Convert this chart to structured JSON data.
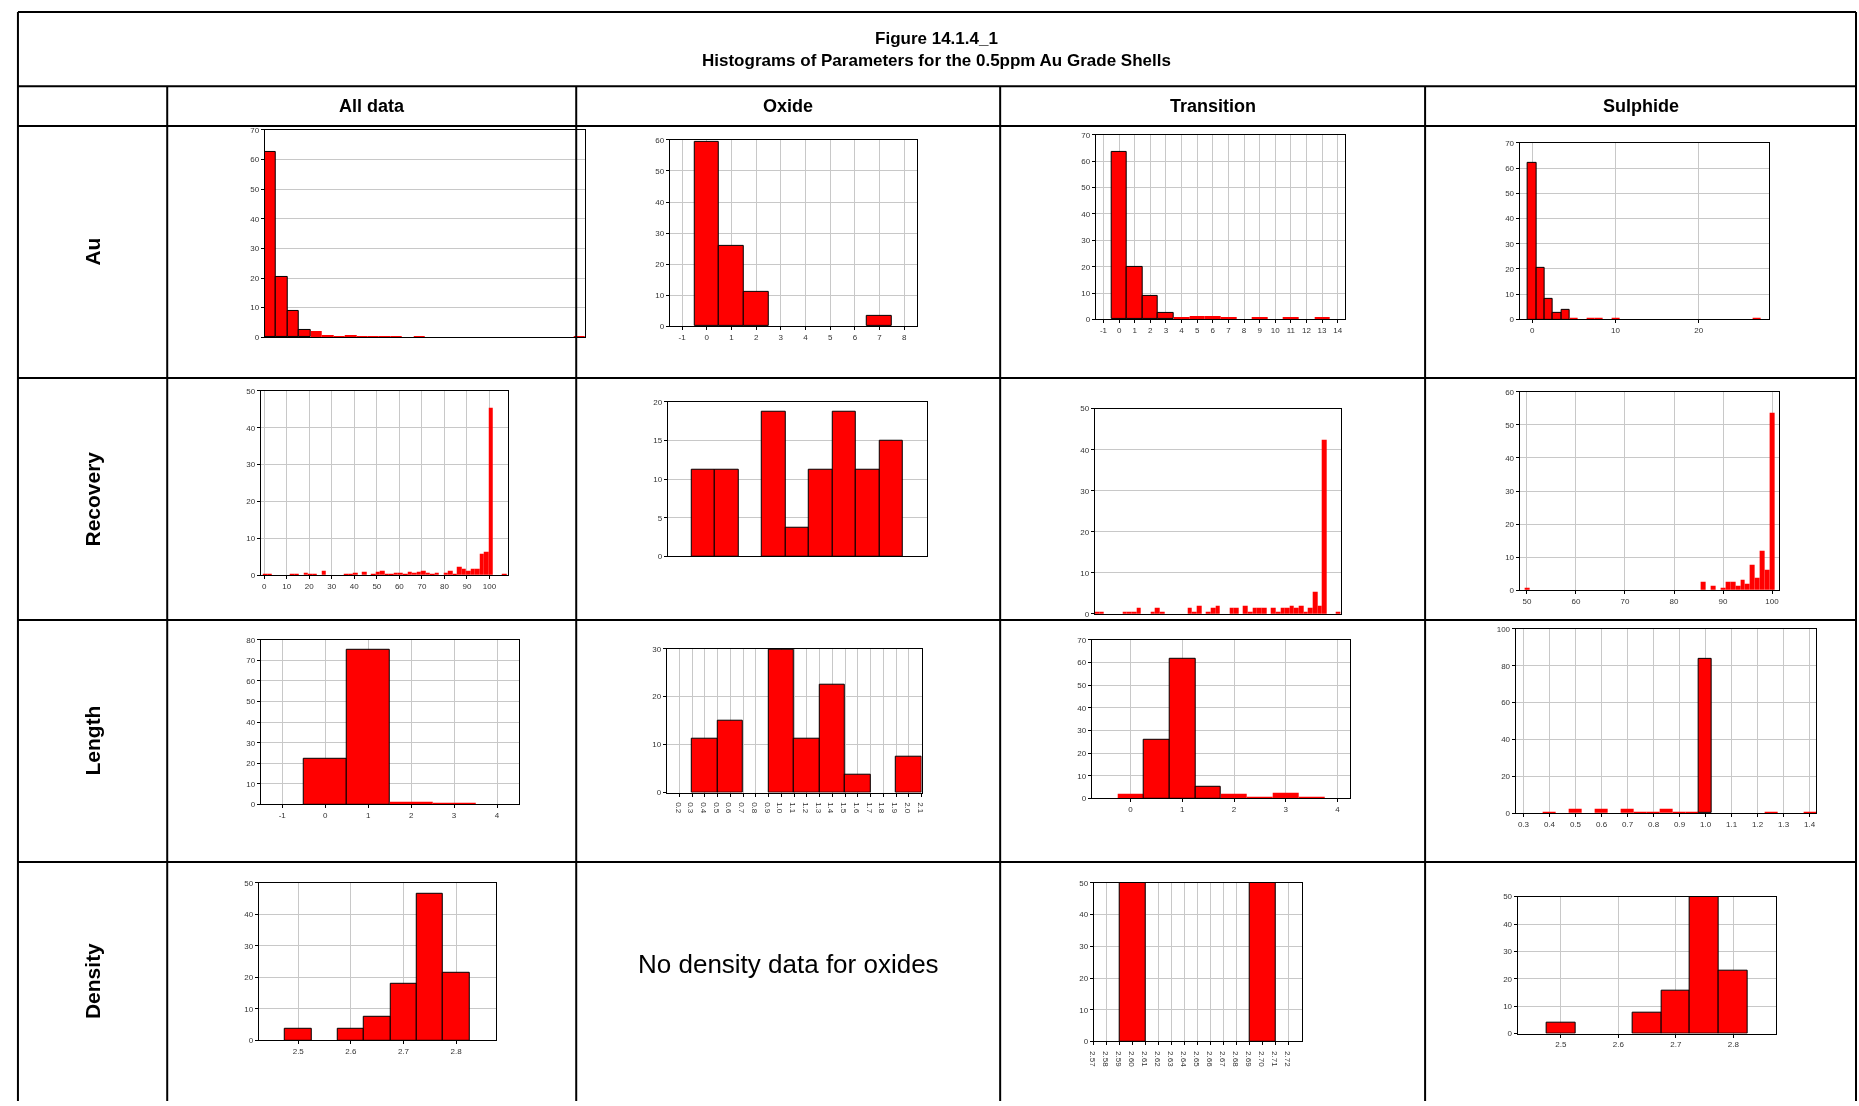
{
  "chart_data": [
    {
      "type": "other",
      "title": "Figure 14.1.4_1\nHistograms of Parameters for the 0.5ppm Au Grade Shells",
      "annotations": [
        "All data",
        "Oxide",
        "Transition",
        "Sulphide",
        "Au",
        "Recovery",
        "Length",
        "Density",
        "No density data for oxides"
      ]
    },
    {
      "type": "bar",
      "color": "#ff0000",
      "grid": true,
      "tick_labels": "y",
      "categories": [
        null,
        null,
        null,
        null,
        null,
        null,
        null,
        null,
        null,
        null,
        null,
        null,
        null,
        null,
        null,
        null,
        null,
        null,
        null,
        null,
        null,
        null,
        null,
        null,
        null,
        null,
        null,
        null
      ],
      "values": [
        62.5,
        20.5,
        8.8,
        2.3,
        2,
        0.8,
        0.5,
        0.8,
        0.2,
        0.2,
        0.2,
        0.2,
        0,
        0.3,
        0,
        0,
        0,
        0,
        0,
        0,
        0,
        0,
        0,
        0,
        0,
        0,
        0,
        0.3
      ],
      "ylim": [
        0,
        70
      ],
      "yticks": [
        0,
        10,
        20,
        30,
        40,
        50,
        60,
        70
      ]
    },
    {
      "type": "histogram",
      "color": "#ff0000",
      "grid": true,
      "bins": [
        -0.5,
        0.5,
        1.5,
        2.5,
        3.5,
        4.5,
        5.5,
        6.5,
        7.5
      ],
      "values": [
        59.5,
        26,
        11,
        0,
        0,
        0,
        0,
        3.5
      ],
      "xlim": [
        -1.5,
        8.5
      ],
      "xticks": [
        -1,
        0,
        1,
        2,
        3,
        4,
        5,
        6,
        7,
        8
      ],
      "ylim": [
        0,
        60
      ],
      "yticks": [
        0,
        10,
        20,
        30,
        40,
        50,
        60
      ]
    },
    {
      "type": "histogram",
      "color": "#ff0000",
      "grid": true,
      "bins": [
        -0.5,
        0.5,
        1.5,
        2.5,
        3.5,
        4.5,
        5.5,
        6.5,
        7.5,
        8.5,
        9.5,
        10.5,
        11.5,
        12.5,
        13.5
      ],
      "values": [
        63.5,
        20,
        8.8,
        2.5,
        0.8,
        1.3,
        1.3,
        0.8,
        0,
        0.8,
        0,
        0.8,
        0,
        0.8
      ],
      "xlim": [
        -1.5,
        14.5
      ],
      "xticks": [
        -1,
        0,
        1,
        2,
        3,
        4,
        5,
        6,
        7,
        8,
        9,
        10,
        11,
        12,
        13,
        14
      ],
      "ylim": [
        0,
        70
      ],
      "yticks": [
        0,
        10,
        20,
        30,
        40,
        50,
        60,
        70
      ]
    },
    {
      "type": "histogram",
      "color": "#ff0000",
      "grid": true,
      "bins": [
        -0.5,
        0.5,
        1.5,
        2.5,
        3.5,
        4.5,
        5.5,
        6.5,
        7.5,
        8.5,
        9.5,
        10.5,
        11.5,
        12.5,
        13.5,
        14.5,
        15.5,
        16.5,
        17.5,
        18.5,
        19.5,
        20.5,
        21.5,
        22.5,
        23.5,
        24.5,
        25.5,
        26.5,
        27.5
      ],
      "values": [
        62,
        20.5,
        8.2,
        2.5,
        3.8,
        0.5,
        0,
        0.5,
        0.5,
        0,
        0.5,
        0,
        0,
        0,
        0,
        0,
        0,
        0,
        0,
        0,
        0,
        0,
        0,
        0,
        0,
        0,
        0,
        0.5
      ],
      "xlim": [
        -1.5,
        28.5
      ],
      "xticks": [
        0,
        10,
        20
      ],
      "ylim": [
        0,
        70
      ],
      "yticks": [
        0,
        10,
        20,
        30,
        40,
        50,
        60,
        70
      ]
    },
    {
      "type": "histogram",
      "color": "#ff0000",
      "grid": true,
      "bins": [
        -0.5,
        1.5,
        3.5,
        5.5,
        7.5,
        9.5,
        11.5,
        13.5,
        15.5,
        17.5,
        19.5,
        21.5,
        23.5,
        25.5,
        27.5,
        29.5,
        31.5,
        33.5,
        35.5,
        37.5,
        39.5,
        41.5,
        43.5,
        45.5,
        47.5,
        49.5,
        51.5,
        53.5,
        55.5,
        57.5,
        59.5,
        61.5,
        63.5,
        65.5,
        67.5,
        69.5,
        71.5,
        73.5,
        75.5,
        77.5,
        79.5,
        81.5,
        83.5,
        85.5,
        87.5,
        89.5,
        91.5,
        93.5,
        95.5,
        97.5,
        99.5,
        101.5,
        103.5,
        105.5,
        107.5
      ],
      "values": [
        0.5,
        0.5,
        0,
        0,
        0,
        0,
        0.5,
        0.5,
        0,
        0.7,
        0.5,
        0.5,
        0,
        1.2,
        0,
        0,
        0,
        0,
        0.5,
        0.5,
        0.8,
        0,
        1,
        0,
        0.5,
        1,
        1.2,
        0.5,
        0.5,
        0.8,
        0.8,
        0.5,
        1,
        0.7,
        1,
        1.2,
        0.8,
        0.5,
        0.7,
        0,
        0.7,
        1.2,
        0.5,
        2.2,
        1.7,
        1.3,
        1.8,
        1.8,
        5.8,
        6.3,
        45.5,
        0,
        0,
        0.5
      ],
      "xlim": [
        -1.5,
        108
      ],
      "xticks": [
        0,
        10,
        20,
        30,
        40,
        50,
        60,
        70,
        80,
        90,
        100
      ],
      "ylim": [
        0,
        50
      ],
      "yticks": [
        0,
        10,
        20,
        30,
        40,
        50
      ]
    },
    {
      "type": "bar",
      "color": "#ff0000",
      "grid": true,
      "tick_labels": "y",
      "categories": [
        null,
        null,
        null,
        null,
        null,
        null,
        null,
        null,
        null,
        null,
        null
      ],
      "values": [
        0,
        11.2,
        11.2,
        0,
        18.7,
        3.7,
        11.2,
        18.7,
        11.2,
        14.9,
        0
      ],
      "ylim": [
        0,
        20
      ],
      "yticks": [
        0,
        5,
        10,
        15,
        20
      ]
    },
    {
      "type": "bar",
      "color": "#ff0000",
      "grid": true,
      "tick_labels": "y",
      "categories": [
        null,
        null,
        null,
        null,
        null,
        null,
        null,
        null,
        null,
        null,
        null,
        null,
        null,
        null,
        null,
        null,
        null,
        null,
        null,
        null,
        null,
        null,
        null,
        null,
        null,
        null,
        null,
        null,
        null,
        null,
        null,
        null,
        null,
        null,
        null,
        null,
        null,
        null,
        null,
        null,
        null,
        null,
        null,
        null,
        null,
        null,
        null,
        null,
        null,
        null,
        null,
        null,
        null
      ],
      "values": [
        0.5,
        0.5,
        0,
        0,
        0,
        0,
        0.5,
        0.5,
        0.5,
        1.5,
        0,
        0,
        0.5,
        1.5,
        0.5,
        0,
        0,
        0,
        0,
        0,
        1.5,
        0.5,
        2,
        0,
        0.5,
        1.5,
        2,
        0,
        0,
        1.5,
        1.5,
        0,
        2,
        0.5,
        1.5,
        1.5,
        1.5,
        0,
        1.5,
        0.5,
        1.5,
        1.5,
        2,
        1.5,
        2,
        0.5,
        1.5,
        5.5,
        2,
        42.5,
        0,
        0,
        0.5
      ],
      "ylim": [
        0,
        50
      ],
      "yticks": [
        0,
        10,
        20,
        30,
        40,
        50
      ]
    },
    {
      "type": "histogram",
      "color": "#ff0000",
      "grid": true,
      "bins": [
        49.5,
        50.5,
        51.5,
        52.5,
        53.5,
        54.5,
        55.5,
        56.5,
        57.5,
        58.5,
        59.5,
        60.5,
        61.5,
        62.5,
        63.5,
        64.5,
        65.5,
        66.5,
        67.5,
        68.5,
        69.5,
        70.5,
        71.5,
        72.5,
        73.5,
        74.5,
        75.5,
        76.5,
        77.5,
        78.5,
        79.5,
        80.5,
        81.5,
        82.5,
        83.5,
        84.5,
        85.5,
        86.5,
        87.5,
        88.5,
        89.5,
        90.5,
        91.5,
        92.5,
        93.5,
        94.5,
        95.5,
        96.5,
        97.5,
        98.5,
        99.5,
        100.5
      ],
      "values": [
        0.7,
        0,
        0,
        0,
        0,
        0,
        0,
        0,
        0,
        0,
        0,
        0,
        0,
        0,
        0,
        0,
        0,
        0,
        0,
        0,
        0,
        0,
        0,
        0,
        0,
        0,
        0,
        0,
        0,
        0,
        0,
        0,
        0,
        0,
        0,
        0,
        2.5,
        0,
        1.3,
        0,
        0.7,
        2.5,
        2.5,
        1.3,
        3.2,
        1.8,
        7.8,
        3.8,
        12,
        6.3,
        53.8
      ],
      "xlim": [
        48.5,
        101.5
      ],
      "xticks": [
        50,
        60,
        70,
        80,
        90,
        100
      ],
      "ylim": [
        0,
        60
      ],
      "yticks": [
        0,
        10,
        20,
        30,
        40,
        50,
        60
      ]
    },
    {
      "type": "histogram",
      "color": "#ff0000",
      "grid": true,
      "bins": [
        -0.5,
        0.5,
        1.5,
        2.5,
        3.5
      ],
      "values": [
        22,
        75,
        1.5,
        1
      ],
      "xlim": [
        -1.5,
        4.5
      ],
      "xticks": [
        -1,
        0,
        1,
        2,
        3,
        4
      ],
      "ylim": [
        0,
        80
      ],
      "yticks": [
        0,
        10,
        20,
        30,
        40,
        50,
        60,
        70,
        80
      ]
    },
    {
      "type": "histogram",
      "color": "#ff0000",
      "grid": true,
      "bins": [
        0.3,
        0.5,
        0.7,
        0.9,
        1.1,
        1.3,
        1.5,
        1.7,
        1.9,
        2.1
      ],
      "values": [
        11.2,
        14.9,
        0,
        29.8,
        11.2,
        22.4,
        3.7,
        0,
        7.5
      ],
      "xlim": [
        0.1,
        2.1
      ],
      "xticks": [
        0.2,
        0.3,
        0.4,
        0.5,
        0.6,
        0.7,
        0.8,
        0.9,
        {
          "value": 1,
          "label": "1.0"
        },
        1.1,
        1.2,
        1.3,
        1.4,
        1.5,
        1.6,
        1.7,
        1.8,
        1.9,
        {
          "value": 2,
          "label": "2.0"
        },
        2.1
      ],
      "ylim": [
        0,
        30
      ],
      "yticks": [
        0,
        10,
        20,
        30
      ]
    },
    {
      "type": "histogram",
      "color": "#ff0000",
      "grid": true,
      "bins": [
        -0.25,
        0.25,
        0.75,
        1.25,
        1.75,
        2.25,
        2.75,
        3.25,
        3.75
      ],
      "values": [
        2,
        26,
        61.5,
        5.3,
        2,
        0.7,
        2.5,
        0.7
      ],
      "xlim": [
        -0.75,
        4.25
      ],
      "xticks": [
        0,
        1,
        2,
        3,
        4
      ],
      "ylim": [
        0,
        70
      ],
      "yticks": [
        0,
        10,
        20,
        30,
        40,
        50,
        60,
        70
      ]
    },
    {
      "type": "histogram",
      "color": "#ff0000",
      "grid": true,
      "bins": [
        0.375,
        0.425,
        0.475,
        0.525,
        0.575,
        0.625,
        0.675,
        0.725,
        0.775,
        0.825,
        0.875,
        0.925,
        0.975,
        1.025,
        1.075,
        1.125,
        1.175,
        1.225,
        1.275,
        1.325,
        1.375,
        1.425
      ],
      "values": [
        0.8,
        0,
        2.5,
        0,
        2.5,
        0,
        2.5,
        0.5,
        1,
        2.5,
        0.7,
        0.7,
        84,
        0,
        0,
        0,
        0,
        0.8,
        0,
        0,
        0.8
      ],
      "xlim": [
        0.27,
        1.425
      ],
      "xticks": [
        0.3,
        0.4,
        0.5,
        0.6,
        0.7,
        0.8,
        0.9,
        {
          "value": 1,
          "label": "1.0"
        },
        1.1,
        1.2,
        1.3,
        1.4
      ],
      "ylim": [
        0,
        100
      ],
      "yticks": [
        0,
        20,
        40,
        60,
        80,
        100
      ]
    },
    {
      "type": "histogram",
      "color": "#ff0000",
      "grid": true,
      "bins": [
        2.475,
        2.525,
        2.575,
        2.625,
        2.675,
        2.725,
        2.775,
        2.825
      ],
      "values": [
        3.7,
        0,
        3.7,
        7.4,
        18,
        46.5,
        21.6
      ],
      "xlim": [
        2.425,
        2.875
      ],
      "xticks": [
        2.5,
        2.6,
        2.7,
        2.8
      ],
      "ylim": [
        0,
        50
      ],
      "yticks": [
        0,
        10,
        20,
        30,
        40,
        50
      ]
    },
    {
      "type": "histogram",
      "color": "#ff0000",
      "grid": true,
      "bins": [
        2.59,
        2.61,
        2.63,
        2.65,
        2.67,
        2.69,
        2.71
      ],
      "values": [
        50,
        0,
        0,
        0,
        0,
        50
      ],
      "xlim": [
        2.57,
        2.73
      ],
      "xticks": [
        2.57,
        2.58,
        2.59,
        {
          "value": 2.6,
          "label": "2.60"
        },
        2.61,
        2.62,
        2.63,
        2.64,
        2.65,
        2.66,
        2.67,
        2.68,
        2.69,
        {
          "value": 2.7,
          "label": "2.70"
        },
        2.71,
        2.72
      ],
      "ylim": [
        0,
        50
      ],
      "yticks": [
        0,
        10,
        20,
        30,
        40,
        50
      ]
    },
    {
      "type": "histogram",
      "color": "#ff0000",
      "grid": true,
      "bins": [
        2.475,
        2.525,
        2.575,
        2.625,
        2.675,
        2.725,
        2.775,
        2.825
      ],
      "values": [
        3.8,
        0,
        0,
        7.7,
        15.5,
        50,
        23
      ],
      "xlim": [
        2.425,
        2.875
      ],
      "xticks": [
        2.5,
        2.6,
        2.7,
        2.8
      ],
      "ylim": [
        0,
        50
      ],
      "yticks": [
        0,
        10,
        20,
        30,
        40,
        50
      ]
    }
  ]
}
